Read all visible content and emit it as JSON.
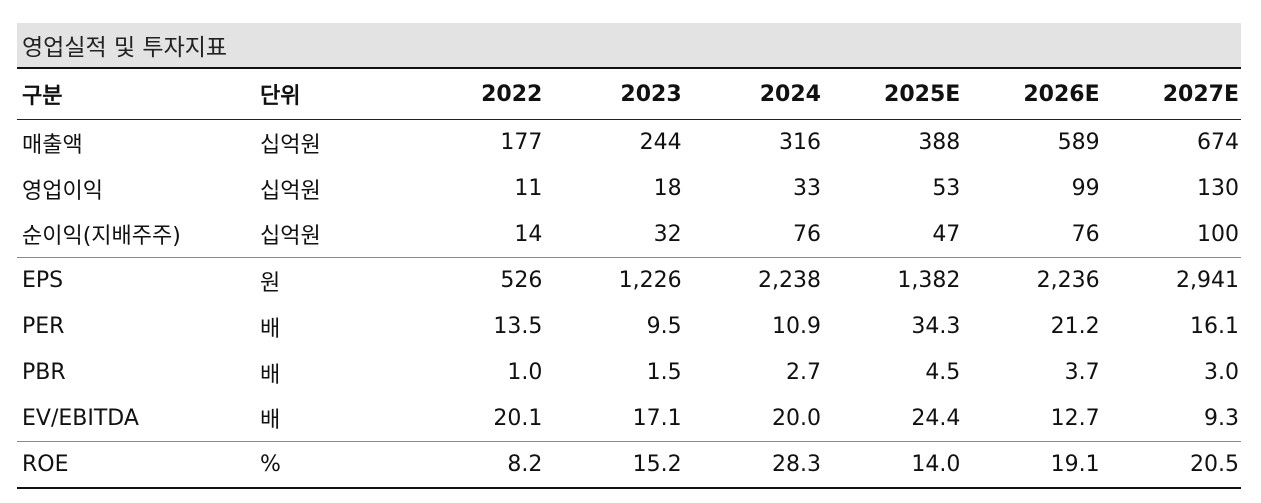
{
  "title": "영업실적 및 투자지표",
  "header": [
    "구분",
    "단위",
    "2022",
    "2023",
    "2024",
    "2025E",
    "2026E",
    "2027E"
  ],
  "rows": [
    {
      "label": "매출액",
      "unit": "십억원",
      "values": [
        "177",
        "244",
        "316",
        "388",
        "589",
        "674"
      ]
    },
    {
      "label": "영업이익",
      "unit": "십억원",
      "values": [
        "11",
        "18",
        "33",
        "53",
        "99",
        "130"
      ]
    },
    {
      "label": "순이익(지배주주)",
      "unit": "십억원",
      "values": [
        "14",
        "32",
        "76",
        "47",
        "76",
        "100"
      ]
    },
    {
      "label": "EPS",
      "unit": "원",
      "values": [
        "526",
        "1,226",
        "2,238",
        "1,382",
        "2,236",
        "2,941"
      ]
    },
    {
      "label": "PER",
      "unit": "배",
      "values": [
        "13.5",
        "9.5",
        "10.9",
        "34.3",
        "21.2",
        "16.1"
      ]
    },
    {
      "label": "PBR",
      "unit": "배",
      "values": [
        "1.0",
        "1.5",
        "2.7",
        "4.5",
        "3.7",
        "3.0"
      ]
    },
    {
      "label": "EV/EBITDA",
      "unit": "배",
      "values": [
        "20.1",
        "17.1",
        "20.0",
        "24.4",
        "12.7",
        "9.3"
      ]
    },
    {
      "label": "ROE",
      "unit": "%",
      "values": [
        "8.2",
        "15.2",
        "28.3",
        "14.0",
        "19.1",
        "20.5"
      ]
    }
  ]
}
